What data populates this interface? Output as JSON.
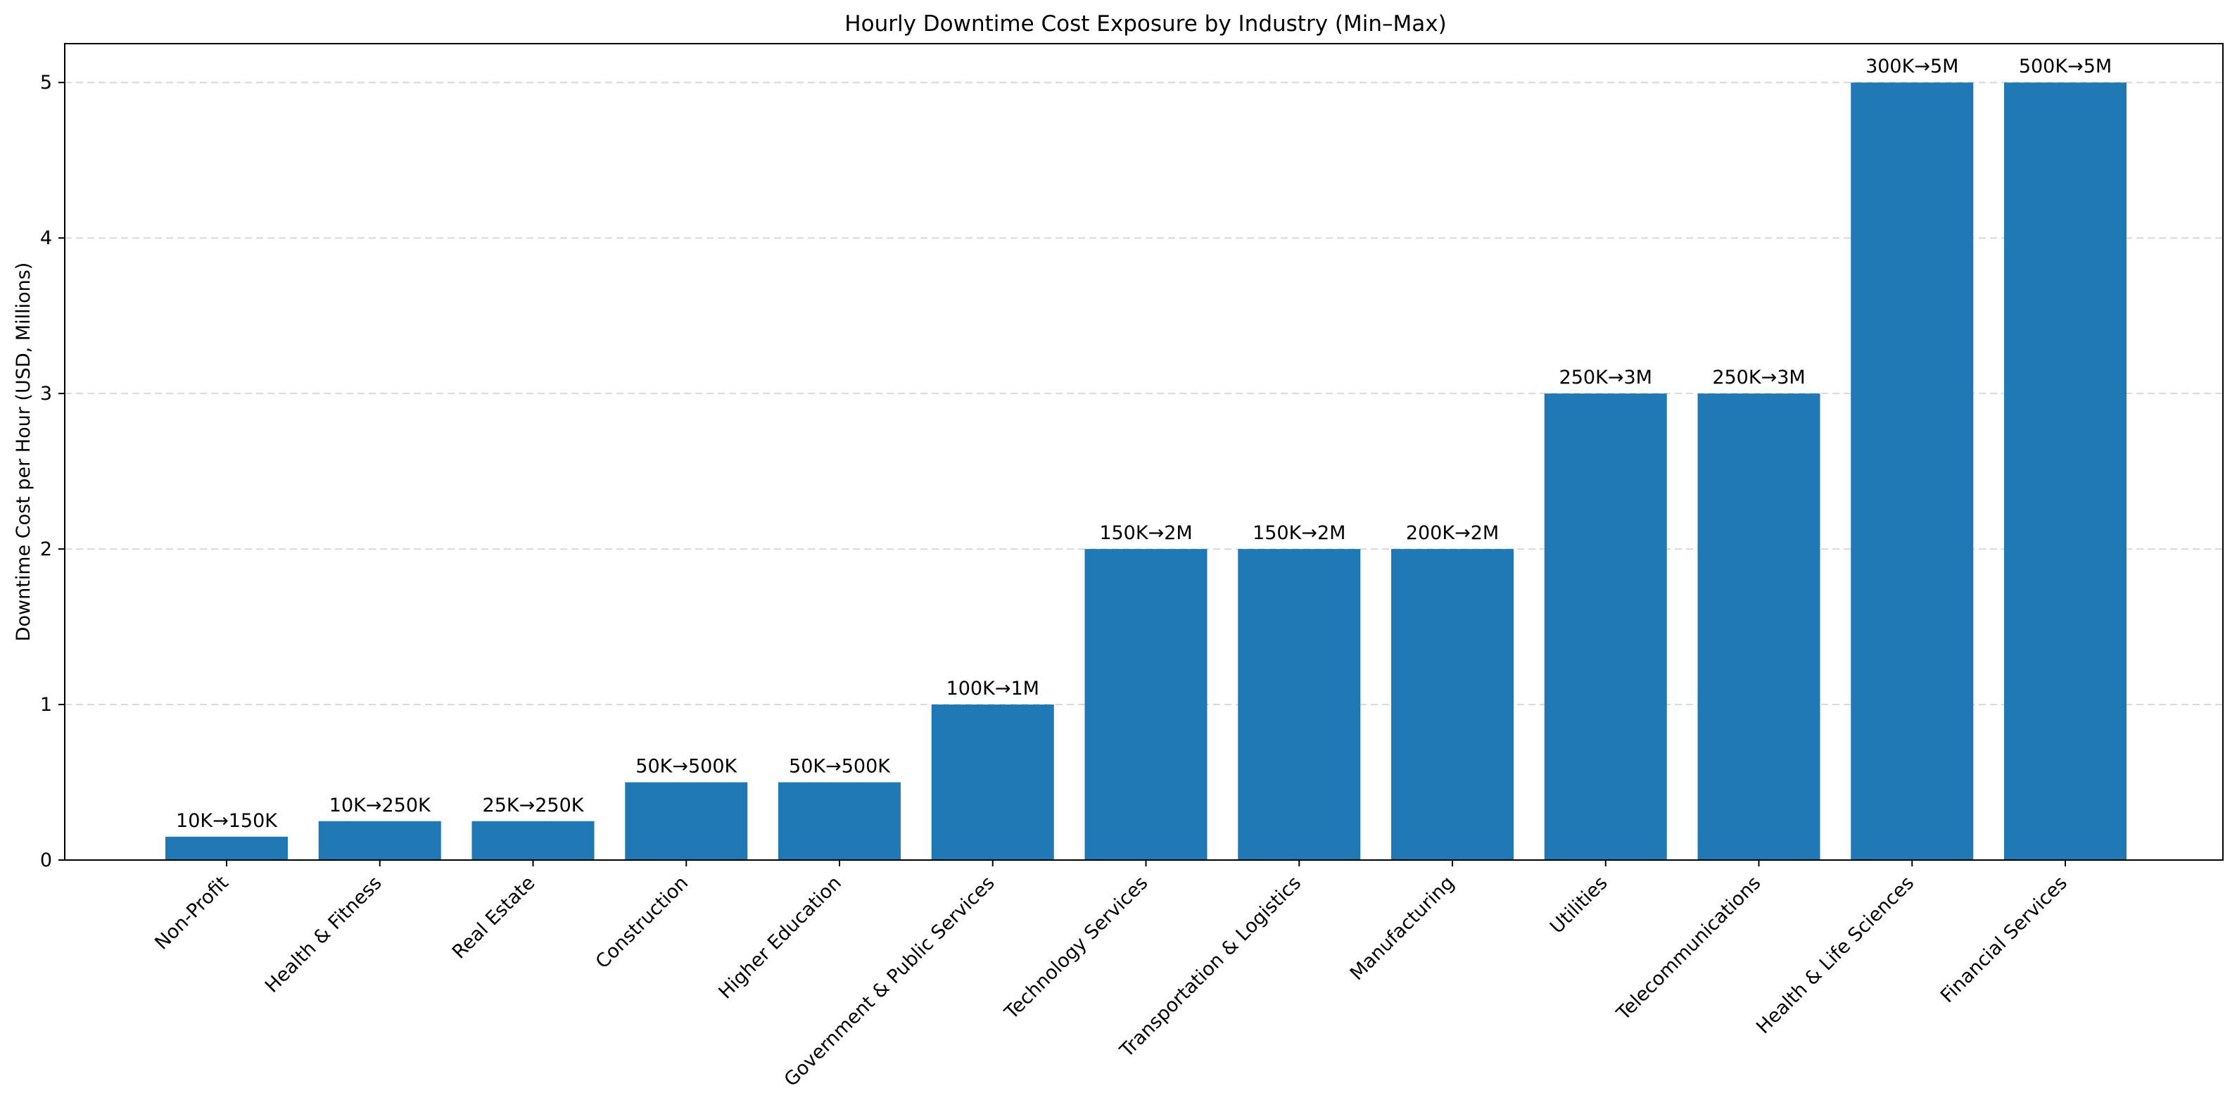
{
  "chart_data": {
    "type": "bar",
    "title": "Hourly Downtime Cost Exposure by Industry (Min–Max)",
    "xlabel": "",
    "ylabel": "Downtime Cost per Hour (USD, Millions)",
    "ylim": [
      0,
      5.25
    ],
    "yticks": [
      "0",
      "1",
      "2",
      "3",
      "4",
      "5"
    ],
    "grid": "y-axis dashed",
    "bar_color": "#1f77b4",
    "categories": [
      "Non-Profit",
      "Health & Fitness",
      "Real Estate",
      "Construction",
      "Higher Education",
      "Government & Public Services",
      "Technology Services",
      "Transportation & Logistics",
      "Manufacturing",
      "Utilities",
      "Telecommunications",
      "Health & Life Sciences",
      "Financial Services"
    ],
    "values": [
      0.15,
      0.25,
      0.25,
      0.5,
      0.5,
      1,
      2,
      2,
      2,
      3,
      3,
      5,
      5
    ],
    "data_labels": [
      "10K→150K",
      "10K→250K",
      "25K→250K",
      "50K→500K",
      "50K→500K",
      "100K→1M",
      "150K→2M",
      "150K→2M",
      "200K→2M",
      "250K→3M",
      "250K→3M",
      "300K→5M",
      "500K→5M"
    ]
  }
}
